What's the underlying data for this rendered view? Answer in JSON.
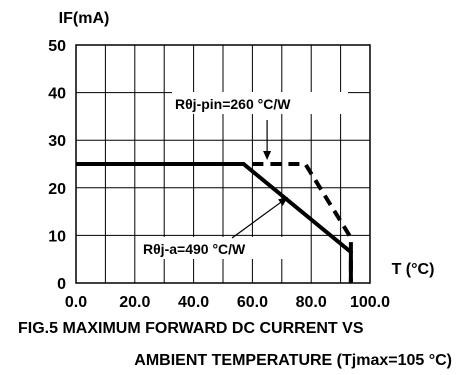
{
  "chart_data": {
    "type": "line",
    "title": "",
    "ylabel": "IF(mA)",
    "xlabel": "T (°C)",
    "xlim": [
      0,
      100
    ],
    "ylim": [
      0,
      50
    ],
    "x_ticks": [
      "0.0",
      "20.0",
      "40.0",
      "60.0",
      "80.0",
      "100.0"
    ],
    "y_ticks": [
      "0",
      "10",
      "20",
      "30",
      "40",
      "50"
    ],
    "grid": true,
    "series": [
      {
        "name": "Rθj-a=490 °C/W",
        "style": "solid",
        "points": [
          [
            0,
            25
          ],
          [
            57,
            25
          ],
          [
            93.5,
            6.5
          ],
          [
            93.5,
            0
          ]
        ]
      },
      {
        "name": "Rθj-pin=260 °C/W",
        "style": "dashed",
        "points": [
          [
            60,
            25
          ],
          [
            78,
            25
          ],
          [
            93.5,
            9.5
          ],
          [
            93.5,
            0
          ]
        ]
      }
    ],
    "annotations": [
      {
        "text": "Rθj-pin=260 °C/W",
        "points_to": [
          65,
          25
        ]
      },
      {
        "text": "Rθj-a=490 °C/W",
        "points_to": [
          72,
          18
        ]
      }
    ],
    "caption_line1": "FIG.5 MAXIMUM FORWARD DC CURRENT VS",
    "caption_line2": "AMBIENT TEMPERATURE (Tjmax=105 °C)"
  }
}
